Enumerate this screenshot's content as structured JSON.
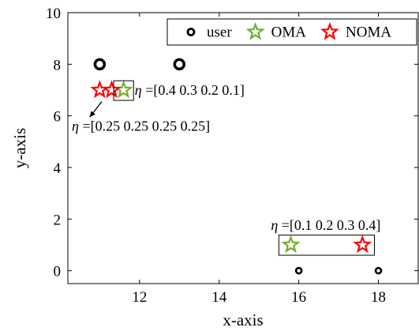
{
  "chart_data": {
    "type": "scatter",
    "xlabel": "x-axis",
    "ylabel": "y-axis",
    "xlim": [
      10.2,
      19
    ],
    "ylim": [
      -0.5,
      10
    ],
    "xticks": [
      12,
      14,
      16,
      18
    ],
    "yticks": [
      0,
      2,
      4,
      6,
      8,
      10
    ],
    "grid": false,
    "legend_position": "top-right",
    "colors": {
      "user": "#000000",
      "OMA": "#77ac30",
      "NOMA": "#ff0000"
    },
    "series": [
      {
        "name": "user",
        "marker": "circle",
        "points": [
          {
            "x": 11,
            "y": 8,
            "size": "large"
          },
          {
            "x": 13,
            "y": 8,
            "size": "large"
          },
          {
            "x": 16,
            "y": 0,
            "size": "small"
          },
          {
            "x": 18,
            "y": 0,
            "size": "small"
          }
        ]
      },
      {
        "name": "OMA",
        "marker": "star",
        "points": [
          {
            "x": 11.6,
            "y": 7
          },
          {
            "x": 15.8,
            "y": 1
          }
        ]
      },
      {
        "name": "NOMA",
        "marker": "star",
        "points": [
          {
            "x": 11.0,
            "y": 7
          },
          {
            "x": 11.3,
            "y": 7
          },
          {
            "x": 17.6,
            "y": 1
          }
        ]
      }
    ],
    "annotations": [
      {
        "eta": "η",
        "text": " =[0.4 0.3 0.2 0.1]"
      },
      {
        "eta": "η",
        "text": " =[0.25 0.25 0.25 0.25]"
      },
      {
        "eta": "η",
        "text": " =[0.1 0.2 0.3 0.4]"
      }
    ]
  }
}
